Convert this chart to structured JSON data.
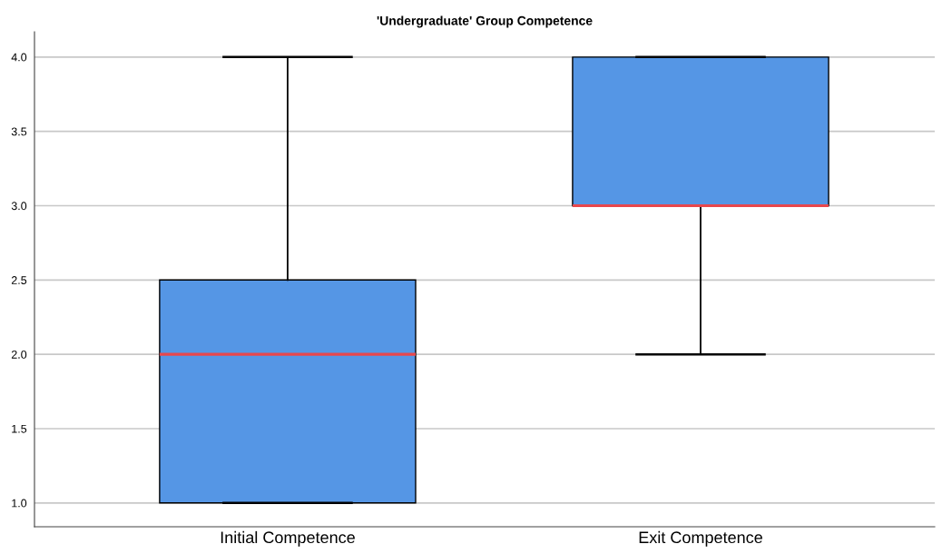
{
  "chart_data": {
    "type": "box",
    "title": "'Undergraduate' Group Competence",
    "categories": [
      "Initial Competence",
      "Exit Competence"
    ],
    "series": [
      {
        "color": "#5596e5",
        "boxes": [
          {
            "low": 1.0,
            "q1": 1.0,
            "median": 2.0,
            "q3": 2.5,
            "high": 4.0
          },
          {
            "low": 2.0,
            "q1": 3.0,
            "median": 3.0,
            "q3": 4.0,
            "high": 4.0
          }
        ]
      }
    ],
    "ylim": [
      0.84,
      4.17
    ],
    "yticks": [
      {
        "value": 1.0,
        "label": "1.0"
      },
      {
        "value": 1.5,
        "label": "1.5"
      },
      {
        "value": 2.0,
        "label": "2.0"
      },
      {
        "value": 2.5,
        "label": "2.5"
      },
      {
        "value": 3.0,
        "label": "3.0"
      },
      {
        "value": 3.5,
        "label": "3.5"
      },
      {
        "value": 4.0,
        "label": "4.0"
      }
    ],
    "grid": "y"
  }
}
